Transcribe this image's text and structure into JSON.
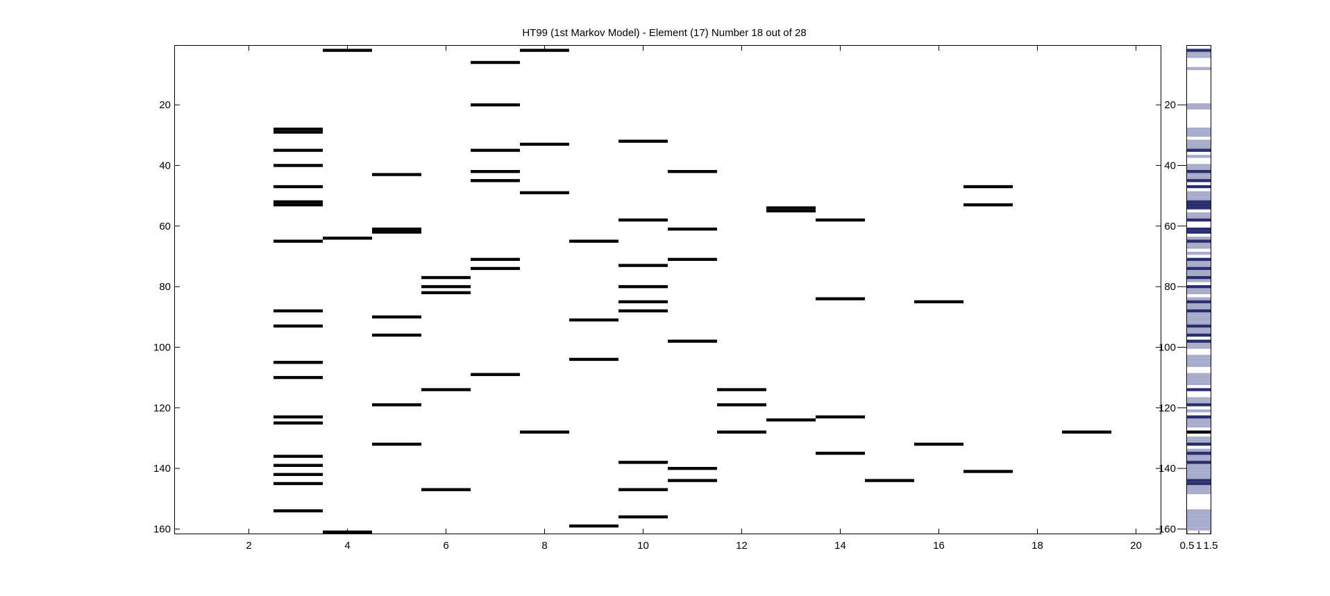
{
  "chart_data": [
    {
      "type": "heatmap",
      "title": "HT99 (1st Markov Model) - Element (17) Number 18 out of 28",
      "xlabel": "",
      "ylabel": "",
      "xlim": [
        0.5,
        20.5
      ],
      "ylim": [
        161.5,
        0.5
      ],
      "xticks": [
        2,
        4,
        6,
        8,
        10,
        12,
        14,
        16,
        18,
        20
      ],
      "yticks": [
        20,
        40,
        60,
        80,
        100,
        120,
        140,
        160
      ],
      "grid": false,
      "legend": "none",
      "mark_color": "#000000",
      "columns": [
        {
          "x": 3,
          "rows": [
            28,
            29,
            35,
            40,
            47,
            52,
            53,
            65,
            88,
            93,
            105,
            110,
            123,
            125,
            136,
            139,
            142,
            145,
            154
          ]
        },
        {
          "x": 4,
          "rows": [
            2,
            64,
            161
          ]
        },
        {
          "x": 5,
          "rows": [
            43,
            61,
            62,
            90,
            96,
            119,
            132
          ]
        },
        {
          "x": 6,
          "rows": [
            77,
            80,
            82,
            114,
            147
          ]
        },
        {
          "x": 7,
          "rows": [
            6,
            20,
            35,
            42,
            45,
            71,
            74,
            109
          ]
        },
        {
          "x": 8,
          "rows": [
            2,
            33,
            49,
            128
          ]
        },
        {
          "x": 9,
          "rows": [
            65,
            91,
            104,
            159
          ]
        },
        {
          "x": 10,
          "rows": [
            32,
            58,
            73,
            80,
            85,
            88,
            138,
            147,
            156
          ]
        },
        {
          "x": 11,
          "rows": [
            42,
            61,
            71,
            98,
            140,
            144
          ]
        },
        {
          "x": 12,
          "rows": [
            114,
            119,
            128
          ]
        },
        {
          "x": 13,
          "rows": [
            54,
            55,
            124
          ]
        },
        {
          "x": 14,
          "rows": [
            58,
            84,
            123,
            135
          ]
        },
        {
          "x": 15,
          "rows": [
            144
          ]
        },
        {
          "x": 16,
          "rows": [
            85,
            132
          ]
        },
        {
          "x": 17,
          "rows": [
            47,
            53,
            141
          ]
        },
        {
          "x": 19,
          "rows": [
            128
          ]
        }
      ]
    },
    {
      "type": "heatmap",
      "title": "",
      "xlabel": "",
      "ylabel": "",
      "xlim": [
        0.5,
        1.5
      ],
      "ylim": [
        161.5,
        0.5
      ],
      "xtick_labels": [
        "0.5",
        "1",
        "1.5"
      ],
      "yticks": [
        20,
        40,
        60,
        80,
        100,
        120,
        140,
        160
      ],
      "grid": false,
      "legend": "none",
      "colors": {
        "light": "#a8abc9",
        "dark": "#2b2e6e",
        "black": "#000000"
      },
      "light_rows": [
        3,
        4,
        8,
        20,
        21,
        28,
        29,
        30,
        32,
        33,
        34,
        37,
        40,
        41,
        43,
        44,
        49,
        50,
        51,
        56,
        57,
        61,
        62,
        64,
        65,
        66,
        67,
        69,
        72,
        73,
        75,
        76,
        78,
        81,
        82,
        84,
        86,
        87,
        89,
        90,
        91,
        92,
        94,
        95,
        96,
        99,
        100,
        103,
        104,
        105,
        106,
        109,
        110,
        111,
        112,
        117,
        118,
        121,
        124,
        125,
        126,
        130,
        131,
        134,
        136,
        137,
        138,
        139,
        140,
        141,
        142,
        143,
        146,
        147,
        148,
        154,
        155,
        156,
        157,
        158,
        159,
        160
      ],
      "dark_rows": [
        2,
        35,
        42,
        45,
        47,
        52,
        53,
        54,
        58,
        61,
        62,
        65,
        71,
        74,
        77,
        80,
        85,
        88,
        93,
        96,
        98,
        114,
        119,
        123,
        132,
        135,
        138,
        144,
        145
      ],
      "black_rows": [
        128
      ]
    }
  ]
}
